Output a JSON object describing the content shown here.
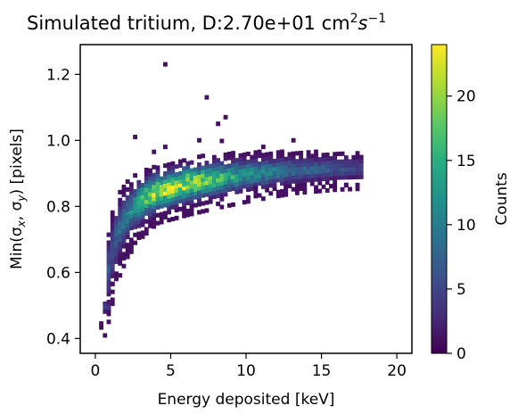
{
  "chart_data": {
    "type": "heatmap",
    "title": "Simulated tritium, D:2.70e+01 cm",
    "title_sup": "2",
    "title_tail": "s",
    "title_tail_sup": "−1",
    "xlabel": "Energy deposited [keV]",
    "ylabel": "Min(σ",
    "ylabel_sub_x": "x",
    "ylabel_mid": ", σ",
    "ylabel_sub_y": "y",
    "ylabel_tail": ") [pixels]",
    "xlim": [
      -1,
      21
    ],
    "ylim": [
      0.355,
      1.29
    ],
    "xticks": [
      0,
      5,
      10,
      15,
      20
    ],
    "xtick_labels": [
      "0",
      "5",
      "10",
      "15",
      "20"
    ],
    "yticks": [
      0.4,
      0.6,
      0.8,
      1.0,
      1.2
    ],
    "ytick_labels": [
      "0.4",
      "0.6",
      "0.8",
      "1.0",
      "1.2"
    ],
    "colorbar": {
      "label": "Counts",
      "colormap": "viridis",
      "range": [
        0,
        24
      ],
      "ticks": [
        0,
        5,
        10,
        15,
        20
      ],
      "tick_labels": [
        "0",
        "5",
        "10",
        "15",
        "20"
      ]
    },
    "bin_width": [
      0.25,
      0.012
    ],
    "ridge": [
      {
        "x": 0.75,
        "y": 0.605,
        "spread": 0.05
      },
      {
        "x": 1.0,
        "y": 0.66,
        "spread": 0.05
      },
      {
        "x": 1.5,
        "y": 0.73,
        "spread": 0.045
      },
      {
        "x": 2.0,
        "y": 0.77,
        "spread": 0.04
      },
      {
        "x": 3.0,
        "y": 0.815,
        "spread": 0.035
      },
      {
        "x": 4.0,
        "y": 0.84,
        "spread": 0.03
      },
      {
        "x": 6.0,
        "y": 0.865,
        "spread": 0.03
      },
      {
        "x": 8.0,
        "y": 0.88,
        "spread": 0.028
      },
      {
        "x": 10.0,
        "y": 0.893,
        "spread": 0.026
      },
      {
        "x": 13.0,
        "y": 0.905,
        "spread": 0.022
      },
      {
        "x": 16.0,
        "y": 0.91,
        "spread": 0.02
      },
      {
        "x": 17.5,
        "y": 0.912,
        "spread": 0.02
      }
    ],
    "peak_counts": [
      {
        "x": 1.0,
        "value": 6
      },
      {
        "x": 2.5,
        "value": 12
      },
      {
        "x": 4.0,
        "value": 22
      },
      {
        "x": 6.0,
        "value": 20
      },
      {
        "x": 8.0,
        "value": 16
      },
      {
        "x": 10.0,
        "value": 12
      },
      {
        "x": 13.0,
        "value": 8
      },
      {
        "x": 16.0,
        "value": 6
      },
      {
        "x": 17.5,
        "value": 4
      }
    ],
    "low_cluster": [
      {
        "x": 0.5,
        "y": 0.5,
        "value": 3
      },
      {
        "x": 0.75,
        "y": 0.5,
        "value": 2
      },
      {
        "x": 0.5,
        "y": 0.488,
        "value": 5
      },
      {
        "x": 0.75,
        "y": 0.488,
        "value": 4
      },
      {
        "x": 0.5,
        "y": 0.476,
        "value": 2
      },
      {
        "x": 0.25,
        "y": 0.44,
        "value": 1
      },
      {
        "x": 0.25,
        "y": 0.428,
        "value": 1
      },
      {
        "x": 0.5,
        "y": 0.404,
        "value": 1
      }
    ],
    "outliers": [
      {
        "x": 4.5,
        "y": 1.225,
        "value": 1
      },
      {
        "x": 7.25,
        "y": 1.125,
        "value": 1
      },
      {
        "x": 8.5,
        "y": 1.065,
        "value": 1
      },
      {
        "x": 8.0,
        "y": 1.045,
        "value": 1
      },
      {
        "x": 2.5,
        "y": 1.005,
        "value": 1
      },
      {
        "x": 13.0,
        "y": 0.995,
        "value": 1
      },
      {
        "x": 6.75,
        "y": 0.995,
        "value": 1
      },
      {
        "x": 8.25,
        "y": 0.993,
        "value": 1
      },
      {
        "x": 11.0,
        "y": 0.975,
        "value": 1
      },
      {
        "x": 4.5,
        "y": 0.975,
        "value": 1
      },
      {
        "x": 3.75,
        "y": 0.96,
        "value": 1
      },
      {
        "x": 16.5,
        "y": 0.86,
        "value": 1
      },
      {
        "x": 15.5,
        "y": 0.856,
        "value": 1
      },
      {
        "x": 12.5,
        "y": 0.855,
        "value": 1
      },
      {
        "x": 10.5,
        "y": 0.85,
        "value": 1
      },
      {
        "x": 1.5,
        "y": 0.63,
        "value": 1
      },
      {
        "x": 1.25,
        "y": 0.575,
        "value": 1
      },
      {
        "x": 1.0,
        "y": 0.56,
        "value": 1
      }
    ]
  }
}
